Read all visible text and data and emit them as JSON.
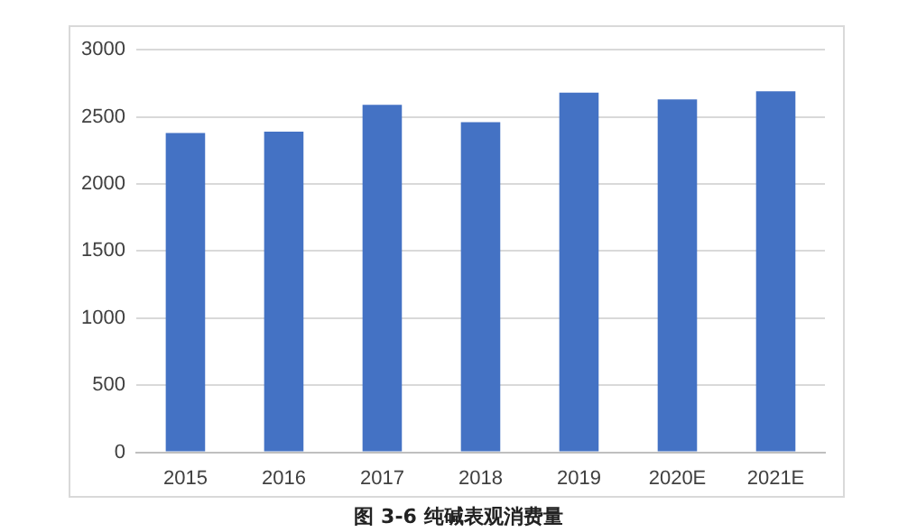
{
  "chart_data": {
    "type": "bar",
    "title": "图 3-6 纯碱表观消费量",
    "categories": [
      "2015",
      "2016",
      "2017",
      "2018",
      "2019",
      "2020E",
      "2021E"
    ],
    "values": [
      2380,
      2390,
      2590,
      2460,
      2680,
      2630,
      2690
    ],
    "color": "#4472c4",
    "ylim": [
      0,
      3000
    ],
    "yticks": [
      0,
      500,
      1000,
      1500,
      2000,
      2500,
      3000
    ],
    "grid": "y",
    "legend": false
  }
}
